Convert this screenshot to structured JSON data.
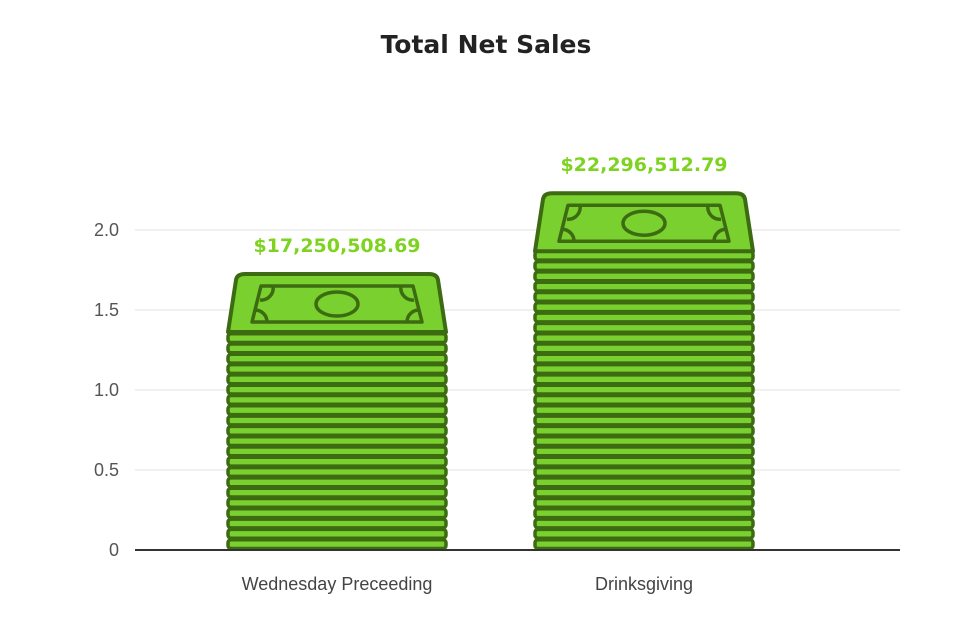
{
  "chart_data": {
    "type": "bar",
    "title": "Total Net Sales",
    "xlabel": "",
    "ylabel": "",
    "categories": [
      "Wednesday Preceeding",
      "Drinksgiving"
    ],
    "values": [
      1.725,
      2.23
    ],
    "data_labels": [
      "$17,250,508.69",
      "$22,296,512.79"
    ],
    "yticks": [
      "0",
      "0.5",
      "1.0",
      "1.5",
      "2.0"
    ],
    "ytick_values": [
      0,
      0.5,
      1.0,
      1.5,
      2.0
    ],
    "ylim": [
      0,
      2.2
    ],
    "grid": true,
    "bar_style": "stack-of-banknotes",
    "colors": {
      "bill_fill": "#7ad02f",
      "bill_outline": "#3c6b12",
      "data_label": "#7ed321",
      "grid": "#e1e1e1",
      "axis": "#333333"
    }
  }
}
